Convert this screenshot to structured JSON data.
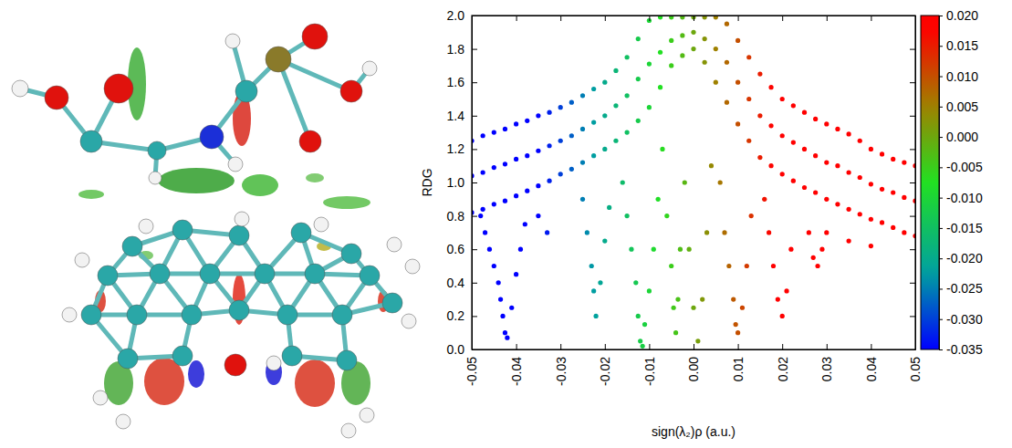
{
  "chart_data": {
    "type": "scatter",
    "x_label": "sign(λ₂)ρ (a.u.)",
    "y_label": "RDG",
    "xlim": [
      -0.05,
      0.05
    ],
    "ylim": [
      0,
      2.0
    ],
    "xticks": [
      -0.05,
      -0.04,
      -0.03,
      -0.02,
      -0.01,
      {
        "value": 0,
        "label": "0.00"
      },
      0.01,
      0.02,
      0.03,
      0.04,
      0.05
    ],
    "yticks": [
      {
        "value": 0,
        "label": "0.0"
      },
      0.2,
      0.4,
      0.6,
      0.8,
      {
        "value": 1,
        "label": "1.0"
      },
      1.2,
      1.4,
      1.6,
      1.8,
      {
        "value": 2,
        "label": "2.0"
      }
    ],
    "colorbar": {
      "range": [
        -0.035,
        0.02
      ],
      "ticks": [
        {
          "value": 0.02,
          "label": "0.020"
        },
        0.015,
        {
          "value": 0.01,
          "label": "0.010"
        },
        0.005,
        {
          "value": 0,
          "label": "0.000"
        },
        -0.005,
        {
          "value": -0.01,
          "label": "-0.010"
        },
        -0.015,
        {
          "value": -0.02,
          "label": "-0.020"
        },
        -0.025,
        {
          "value": -0.03,
          "label": "-0.030"
        },
        -0.035
      ]
    },
    "series": [
      {
        "marker": "circle",
        "x": [
          -0.05,
          -0.0475,
          -0.045,
          -0.0425,
          -0.04,
          -0.0375,
          -0.035,
          -0.0325,
          -0.03,
          -0.0275,
          -0.025,
          -0.0225,
          -0.02,
          -0.0175,
          -0.015,
          -0.0125,
          -0.01,
          -0.0075,
          -0.005,
          -0.0025,
          0,
          0.0025,
          0.005,
          0.0075,
          0.01,
          0.0125,
          0.015,
          0.0175,
          0.02,
          0.0225,
          0.025,
          0.0275,
          0.03,
          0.0325,
          0.035,
          0.0375,
          0.04,
          0.0425,
          0.045,
          0.0475,
          0.05,
          -0.05,
          -0.0475,
          -0.045,
          -0.0425,
          -0.04,
          -0.0375,
          -0.035,
          -0.0325,
          -0.03,
          -0.0275,
          -0.025,
          -0.0225,
          -0.02,
          -0.0175,
          -0.015,
          -0.0125,
          -0.01,
          -0.0075,
          -0.005,
          -0.0025,
          0,
          0.0025,
          0.005,
          0.0075,
          0.01,
          0.0125,
          0.015,
          0.0175,
          0.02,
          0.0225,
          0.025,
          0.0275,
          0.03,
          0.0325,
          0.035,
          0.0375,
          0.04,
          0.0425,
          0.045,
          0.0475,
          0.05,
          -0.05,
          -0.0475,
          -0.045,
          -0.0425,
          -0.04,
          -0.0375,
          -0.035,
          -0.0325,
          -0.03,
          -0.0275,
          -0.025,
          -0.0225,
          -0.02,
          -0.0175,
          -0.015,
          -0.0125,
          -0.01,
          -0.0075,
          -0.005,
          -0.0025,
          0,
          0.0025,
          0.005,
          0.0075,
          0.01,
          0.0125,
          0.015,
          0.0175,
          0.02,
          0.0225,
          0.025,
          0.0275,
          0.03,
          0.0325,
          0.035,
          0.0375,
          0.04,
          0.0425,
          0.045,
          0.0475,
          0.05,
          -0.048,
          -0.047,
          -0.046,
          -0.045,
          -0.044,
          -0.0435,
          -0.043,
          -0.0425,
          -0.042,
          -0.041,
          -0.04,
          -0.039,
          -0.038,
          -0.035,
          -0.033,
          -0.025,
          -0.024,
          -0.023,
          -0.0225,
          -0.022,
          -0.021,
          -0.02,
          -0.019,
          -0.016,
          -0.015,
          -0.014,
          -0.013,
          -0.0125,
          -0.012,
          -0.0115,
          -0.011,
          -0.01,
          -0.009,
          -0.008,
          -0.007,
          -0.006,
          -0.005,
          -0.0045,
          -0.004,
          -0.0035,
          -0.003,
          -0.002,
          -0.001,
          0,
          0.001,
          0.002,
          0.003,
          0.004,
          0.006,
          0.007,
          0.008,
          0.009,
          0.0095,
          0.01,
          0.011,
          0.012,
          0.013,
          0.016,
          0.017,
          0.018,
          0.019,
          0.02,
          0.021,
          0.022,
          0.026,
          0.027,
          0.028,
          0.029,
          0.03,
          0.035,
          0.04
        ],
        "values": [
          0.82,
          0.84,
          0.87,
          0.89,
          0.92,
          0.95,
          0.98,
          1.01,
          1.05,
          1.08,
          1.12,
          1.16,
          1.2,
          1.25,
          1.3,
          1.37,
          1.45,
          1.57,
          1.7,
          1.76,
          1.8,
          1.72,
          1.6,
          1.48,
          1.35,
          1.25,
          1.15,
          1.1,
          1.05,
          1.01,
          0.97,
          0.94,
          0.9,
          0.87,
          0.84,
          0.81,
          0.78,
          0.76,
          0.73,
          0.7,
          0.68,
          1.04,
          1.06,
          1.09,
          1.11,
          1.14,
          1.16,
          1.19,
          1.22,
          1.25,
          1.28,
          1.32,
          1.36,
          1.4,
          1.46,
          1.52,
          1.62,
          1.71,
          1.78,
          1.85,
          1.88,
          1.9,
          1.86,
          1.8,
          1.72,
          1.6,
          1.5,
          1.4,
          1.34,
          1.28,
          1.24,
          1.2,
          1.16,
          1.12,
          1.1,
          1.06,
          1.03,
          0.99,
          0.96,
          0.94,
          0.91,
          0.89,
          1.25,
          1.28,
          1.3,
          1.32,
          1.35,
          1.37,
          1.4,
          1.42,
          1.45,
          1.48,
          1.52,
          1.56,
          1.6,
          1.67,
          1.75,
          1.86,
          1.97,
          1.99,
          1.99,
          1.99,
          1.99,
          1.99,
          1.99,
          1.95,
          1.85,
          1.75,
          1.65,
          1.57,
          1.5,
          1.46,
          1.42,
          1.38,
          1.35,
          1.32,
          1.29,
          1.25,
          1.2,
          1.17,
          1.14,
          1.12,
          1.1,
          0.8,
          0.7,
          0.6,
          0.5,
          0.4,
          0.3,
          0.2,
          0.1,
          0.07,
          0.25,
          0.45,
          0.6,
          0.75,
          0.8,
          0.7,
          0.9,
          0.7,
          0.5,
          0.35,
          0.2,
          0.4,
          0.65,
          0.85,
          1.0,
          0.8,
          0.6,
          0.4,
          0.2,
          0.05,
          0.02,
          0.15,
          0.35,
          0.6,
          0.9,
          1.2,
          0.8,
          0.5,
          0.25,
          0.1,
          0.3,
          0.6,
          1.0,
          0.6,
          0.25,
          0.05,
          0.3,
          0.7,
          1.1,
          1.0,
          0.7,
          0.5,
          0.3,
          0.15,
          0.1,
          0.25,
          0.5,
          0.8,
          0.9,
          0.7,
          0.5,
          0.3,
          0.2,
          0.35,
          0.6,
          0.7,
          0.55,
          0.5,
          0.6,
          0.7,
          0.65,
          0.62
        ]
      }
    ]
  }
}
